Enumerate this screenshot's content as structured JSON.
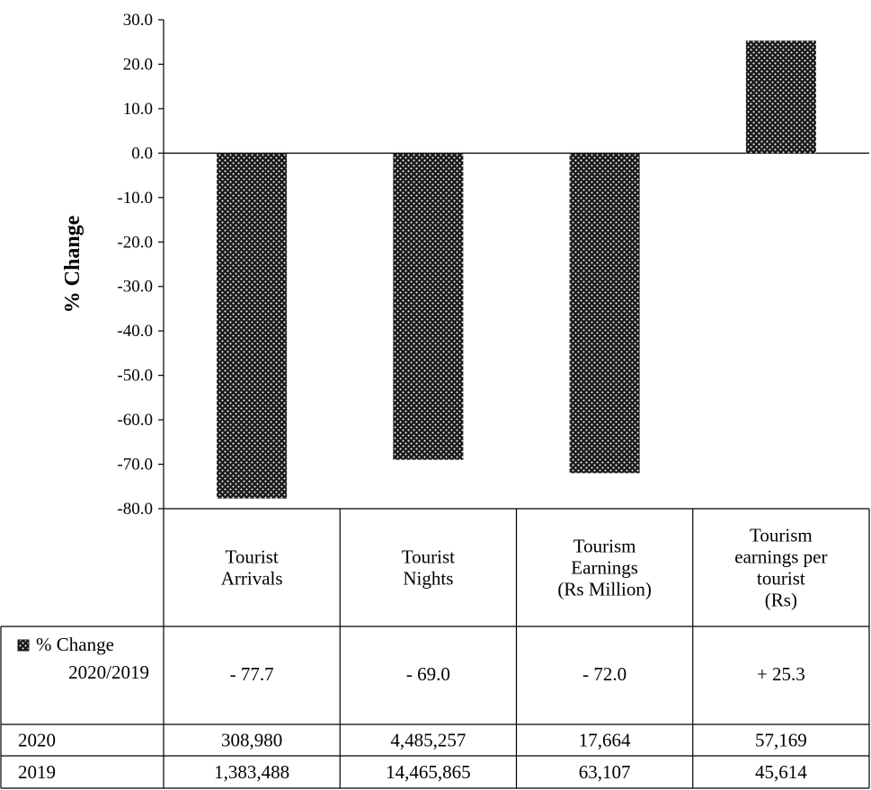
{
  "chart_data": {
    "type": "bar",
    "ylabel": "% Change",
    "ylim": [
      -80,
      30
    ],
    "yticks": [
      "30.0",
      "20.0",
      "10.0",
      "0.0",
      "-10.0",
      "-20.0",
      "-30.0",
      "-40.0",
      "-50.0",
      "-60.0",
      "-70.0",
      "-80.0"
    ],
    "ytick_values": [
      30,
      20,
      10,
      0,
      -10,
      -20,
      -30,
      -40,
      -50,
      -60,
      -70,
      -80
    ],
    "categories": [
      [
        "Tourist",
        "Arrivals"
      ],
      [
        "Tourist",
        "Nights"
      ],
      [
        "Tourism",
        "Earnings",
        "(Rs Million)"
      ],
      [
        "Tourism",
        "earnings per",
        "tourist",
        "(Rs)"
      ]
    ],
    "series": [
      {
        "name": "% Change 2020/2019",
        "values": [
          -77.7,
          -69.0,
          -72.0,
          25.3
        ]
      }
    ],
    "legend_position": "table-row-label",
    "bar_pattern": "dotted-black",
    "colors": {
      "bar": "#1a1a1a",
      "dot": "#ffffff",
      "line": "#000000"
    },
    "table": {
      "series_row_label": [
        "% Change",
        "2020/2019"
      ],
      "series_row_values": [
        "- 77.7",
        "- 69.0",
        "- 72.0",
        "+ 25.3"
      ],
      "rows": [
        {
          "label": "2020",
          "values": [
            "308,980",
            "4,485,257",
            "17,664",
            "57,169"
          ]
        },
        {
          "label": "2019",
          "values": [
            "1,383,488",
            "14,465,865",
            "63,107",
            "45,614"
          ]
        }
      ]
    }
  }
}
